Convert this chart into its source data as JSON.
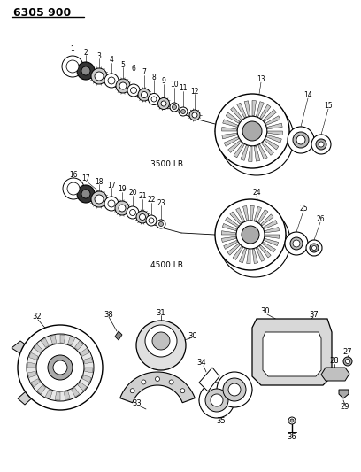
{
  "title": "6305 900",
  "bg_color": "#ffffff",
  "lc": "#000000",
  "label_3500": "3500 LB.",
  "label_4500": "4500 LB.",
  "gray_light": "#d8d8d8",
  "gray_mid": "#aaaaaa",
  "gray_dark": "#555555"
}
